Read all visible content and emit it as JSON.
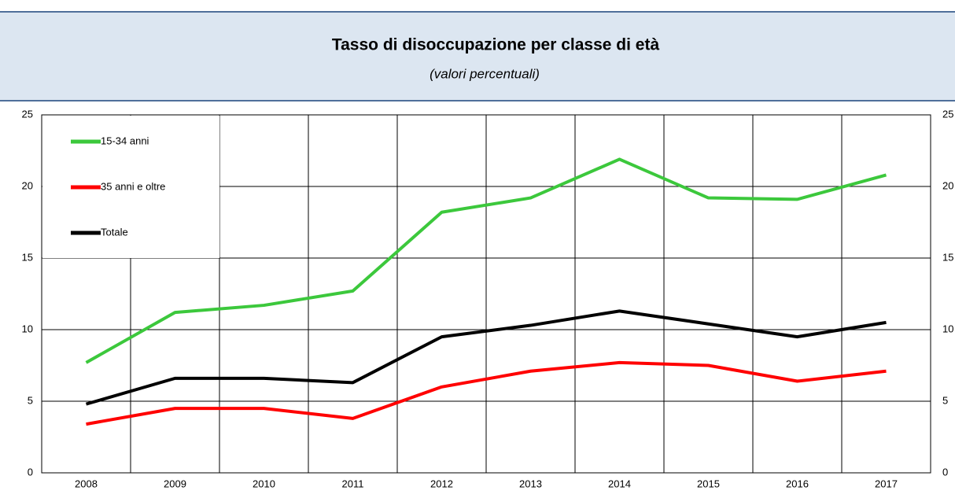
{
  "chart_data": {
    "type": "line",
    "title": "Tasso di disoccupazione per classe di età",
    "subtitle": "(valori percentuali)",
    "categories": [
      "2008",
      "2009",
      "2010",
      "2011",
      "2012",
      "2013",
      "2014",
      "2015",
      "2016",
      "2017"
    ],
    "series": [
      {
        "name": "15-34 anni",
        "color": "#3cc83c",
        "values": [
          7.7,
          11.2,
          11.7,
          12.7,
          18.2,
          19.2,
          21.9,
          19.2,
          19.1,
          20.8
        ]
      },
      {
        "name": "35 anni e oltre",
        "color": "#ff0000",
        "values": [
          3.4,
          4.5,
          4.5,
          3.8,
          6.0,
          7.1,
          7.7,
          7.5,
          6.4,
          7.1
        ]
      },
      {
        "name": "Totale",
        "color": "#000000",
        "values": [
          4.8,
          6.6,
          6.6,
          6.3,
          9.5,
          10.3,
          11.3,
          10.4,
          9.5,
          10.5
        ]
      }
    ],
    "ylim": [
      0,
      25
    ],
    "yticks": [
      0,
      5,
      10,
      15,
      20,
      25
    ],
    "y2lim": [
      0,
      25
    ],
    "y2ticks": [
      0,
      5,
      10,
      15,
      20,
      25
    ],
    "grid": true,
    "legend": "upper left"
  }
}
